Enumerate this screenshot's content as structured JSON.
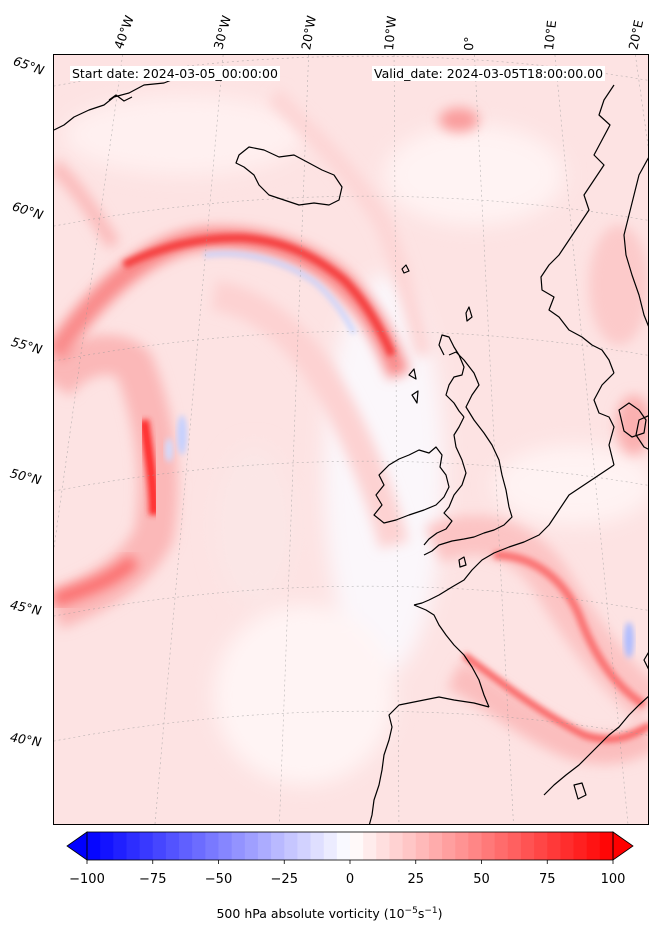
{
  "map": {
    "start_date_label": "Start date: 2024-03-05_00:00:00",
    "valid_date_label": "Valid_date: 2024-03-05T18:00:00.00",
    "field": "500 hPa absolute vorticity",
    "longitude_labels": [
      "40°W",
      "30°W",
      "20°W",
      "10°W",
      "0°",
      "10°E",
      "20°E"
    ],
    "latitude_labels": [
      "65°N",
      "60°N",
      "55°N",
      "50°N",
      "45°N",
      "40°N"
    ],
    "gridlines": true,
    "colors": {
      "coast": "#000000",
      "positive": "#ff0000",
      "negative": "#0000ff",
      "neutral": "#ffffff"
    }
  },
  "colorbar": {
    "ticks": [
      "−100",
      "−75",
      "−50",
      "−25",
      "0",
      "25",
      "50",
      "75",
      "100"
    ],
    "range": [
      -100,
      100
    ],
    "step": 5,
    "label_main": "500 hPa absolute vorticity (10",
    "label_exp1": "−5",
    "label_mid": "s",
    "label_exp2": "−1",
    "label_end": ")",
    "colormap": "bwr"
  }
}
